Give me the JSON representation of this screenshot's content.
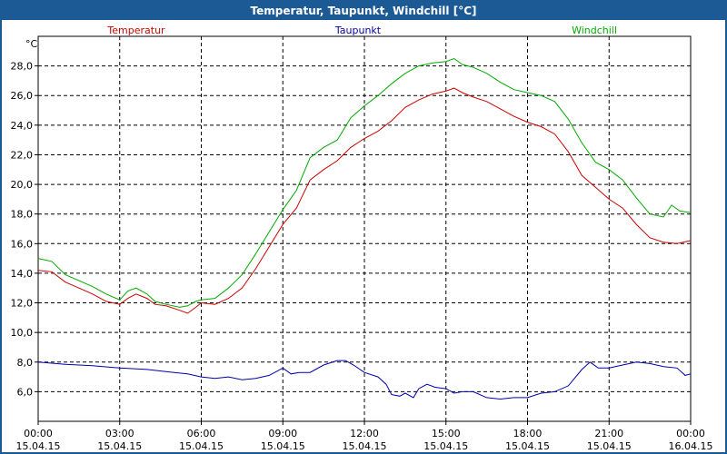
{
  "window": {
    "title": "Temperatur, Taupunkt, Windchill [°C]"
  },
  "chart_data": {
    "type": "line",
    "title": "Temperatur, Taupunkt, Windchill [°C]",
    "ylabel": "°C",
    "ylim": [
      4.0,
      30.0
    ],
    "y_ticks": [
      "6,0",
      "8,0",
      "10,0",
      "12,0",
      "14,0",
      "16,0",
      "18,0",
      "20,0",
      "22,0",
      "24,0",
      "26,0",
      "28,0"
    ],
    "y_tick_values": [
      6,
      8,
      10,
      12,
      14,
      16,
      18,
      20,
      22,
      24,
      26,
      28
    ],
    "xlim": [
      0,
      24
    ],
    "x_ticks": [
      {
        "time": "00:00",
        "date": "15.04.15",
        "hour": 0
      },
      {
        "time": "03:00",
        "date": "15.04.15",
        "hour": 3
      },
      {
        "time": "06:00",
        "date": "15.04.15",
        "hour": 6
      },
      {
        "time": "09:00",
        "date": "15.04.15",
        "hour": 9
      },
      {
        "time": "12:00",
        "date": "15.04.15",
        "hour": 12
      },
      {
        "time": "15:00",
        "date": "15.04.15",
        "hour": 15
      },
      {
        "time": "18:00",
        "date": "15.04.15",
        "hour": 18
      },
      {
        "time": "21:00",
        "date": "15.04.15",
        "hour": 21
      },
      {
        "time": "00:00",
        "date": "16.04.15",
        "hour": 24
      }
    ],
    "grid": true,
    "legend": "top",
    "series": [
      {
        "name": "Temperatur",
        "color": "#cc0000",
        "points": [
          [
            0,
            14.2
          ],
          [
            0.5,
            14.1
          ],
          [
            1,
            13.4
          ],
          [
            1.5,
            13.0
          ],
          [
            2,
            12.6
          ],
          [
            2.5,
            12.1
          ],
          [
            3,
            11.9
          ],
          [
            3.3,
            12.3
          ],
          [
            3.6,
            12.6
          ],
          [
            4,
            12.3
          ],
          [
            4.3,
            11.9
          ],
          [
            4.7,
            11.8
          ],
          [
            5.2,
            11.5
          ],
          [
            5.5,
            11.3
          ],
          [
            5.8,
            11.7
          ],
          [
            6,
            12.0
          ],
          [
            6.5,
            11.9
          ],
          [
            7,
            12.3
          ],
          [
            7.5,
            13.0
          ],
          [
            8,
            14.3
          ],
          [
            8.5,
            15.8
          ],
          [
            9,
            17.3
          ],
          [
            9.5,
            18.4
          ],
          [
            10,
            20.3
          ],
          [
            10.5,
            21.0
          ],
          [
            11,
            21.6
          ],
          [
            11.5,
            22.5
          ],
          [
            12,
            23.1
          ],
          [
            12.5,
            23.6
          ],
          [
            13,
            24.3
          ],
          [
            13.5,
            25.2
          ],
          [
            14,
            25.7
          ],
          [
            14.5,
            26.1
          ],
          [
            15,
            26.3
          ],
          [
            15.3,
            26.5
          ],
          [
            15.6,
            26.2
          ],
          [
            16,
            25.9
          ],
          [
            16.5,
            25.6
          ],
          [
            17,
            25.1
          ],
          [
            17.5,
            24.6
          ],
          [
            18,
            24.2
          ],
          [
            18.5,
            23.9
          ],
          [
            19,
            23.4
          ],
          [
            19.5,
            22.2
          ],
          [
            20,
            20.6
          ],
          [
            20.5,
            19.8
          ],
          [
            21,
            19.0
          ],
          [
            21.5,
            18.4
          ],
          [
            22,
            17.3
          ],
          [
            22.5,
            16.4
          ],
          [
            23,
            16.1
          ],
          [
            23.5,
            16.0
          ],
          [
            24,
            16.2
          ]
        ]
      },
      {
        "name": "Taupunkt",
        "color": "#0000aa",
        "points": [
          [
            0,
            8.0
          ],
          [
            1,
            7.85
          ],
          [
            2,
            7.75
          ],
          [
            3,
            7.6
          ],
          [
            4,
            7.5
          ],
          [
            5,
            7.3
          ],
          [
            5.5,
            7.2
          ],
          [
            6,
            7.0
          ],
          [
            6.5,
            6.9
          ],
          [
            7,
            7.0
          ],
          [
            7.5,
            6.8
          ],
          [
            8,
            6.9
          ],
          [
            8.5,
            7.1
          ],
          [
            9,
            7.6
          ],
          [
            9.3,
            7.2
          ],
          [
            9.6,
            7.3
          ],
          [
            10,
            7.3
          ],
          [
            10.5,
            7.8
          ],
          [
            11,
            8.1
          ],
          [
            11.3,
            8.1
          ],
          [
            11.6,
            7.8
          ],
          [
            12,
            7.3
          ],
          [
            12.5,
            7.0
          ],
          [
            12.8,
            6.5
          ],
          [
            13,
            5.8
          ],
          [
            13.3,
            5.7
          ],
          [
            13.5,
            5.9
          ],
          [
            13.8,
            5.6
          ],
          [
            14,
            6.2
          ],
          [
            14.3,
            6.5
          ],
          [
            14.6,
            6.3
          ],
          [
            15,
            6.2
          ],
          [
            15.3,
            5.9
          ],
          [
            15.6,
            6.0
          ],
          [
            16,
            6.0
          ],
          [
            16.5,
            5.6
          ],
          [
            17,
            5.5
          ],
          [
            17.5,
            5.6
          ],
          [
            18,
            5.6
          ],
          [
            18.5,
            5.9
          ],
          [
            19,
            6.0
          ],
          [
            19.5,
            6.4
          ],
          [
            20,
            7.5
          ],
          [
            20.3,
            8.0
          ],
          [
            20.6,
            7.6
          ],
          [
            21,
            7.6
          ],
          [
            21.5,
            7.8
          ],
          [
            22,
            8.0
          ],
          [
            22.5,
            7.9
          ],
          [
            23,
            7.7
          ],
          [
            23.5,
            7.6
          ],
          [
            23.8,
            7.1
          ],
          [
            24,
            7.2
          ]
        ]
      },
      {
        "name": "Windchill",
        "color": "#00aa00",
        "points": [
          [
            0,
            15.0
          ],
          [
            0.5,
            14.8
          ],
          [
            1,
            13.9
          ],
          [
            1.5,
            13.5
          ],
          [
            2,
            13.1
          ],
          [
            2.5,
            12.6
          ],
          [
            3,
            12.2
          ],
          [
            3.3,
            12.8
          ],
          [
            3.6,
            13.0
          ],
          [
            4,
            12.6
          ],
          [
            4.3,
            12.1
          ],
          [
            4.7,
            11.9
          ],
          [
            5.2,
            11.7
          ],
          [
            5.5,
            11.8
          ],
          [
            5.8,
            12.1
          ],
          [
            6,
            12.2
          ],
          [
            6.5,
            12.3
          ],
          [
            7,
            13.0
          ],
          [
            7.5,
            13.9
          ],
          [
            8,
            15.3
          ],
          [
            8.5,
            16.8
          ],
          [
            9,
            18.3
          ],
          [
            9.5,
            19.6
          ],
          [
            10,
            21.8
          ],
          [
            10.5,
            22.5
          ],
          [
            11,
            23.0
          ],
          [
            11.5,
            24.5
          ],
          [
            12,
            25.3
          ],
          [
            12.5,
            26.0
          ],
          [
            13,
            26.8
          ],
          [
            13.5,
            27.5
          ],
          [
            14,
            28.0
          ],
          [
            14.5,
            28.2
          ],
          [
            15,
            28.3
          ],
          [
            15.3,
            28.5
          ],
          [
            15.6,
            28.1
          ],
          [
            16,
            27.9
          ],
          [
            16.5,
            27.5
          ],
          [
            17,
            26.9
          ],
          [
            17.5,
            26.4
          ],
          [
            18,
            26.2
          ],
          [
            18.5,
            26.0
          ],
          [
            19,
            25.6
          ],
          [
            19.5,
            24.4
          ],
          [
            20,
            22.8
          ],
          [
            20.5,
            21.5
          ],
          [
            21,
            21.0
          ],
          [
            21.5,
            20.3
          ],
          [
            22,
            19.1
          ],
          [
            22.5,
            18.0
          ],
          [
            23,
            17.8
          ],
          [
            23.3,
            18.6
          ],
          [
            23.6,
            18.2
          ],
          [
            24,
            18.1
          ]
        ]
      }
    ]
  }
}
